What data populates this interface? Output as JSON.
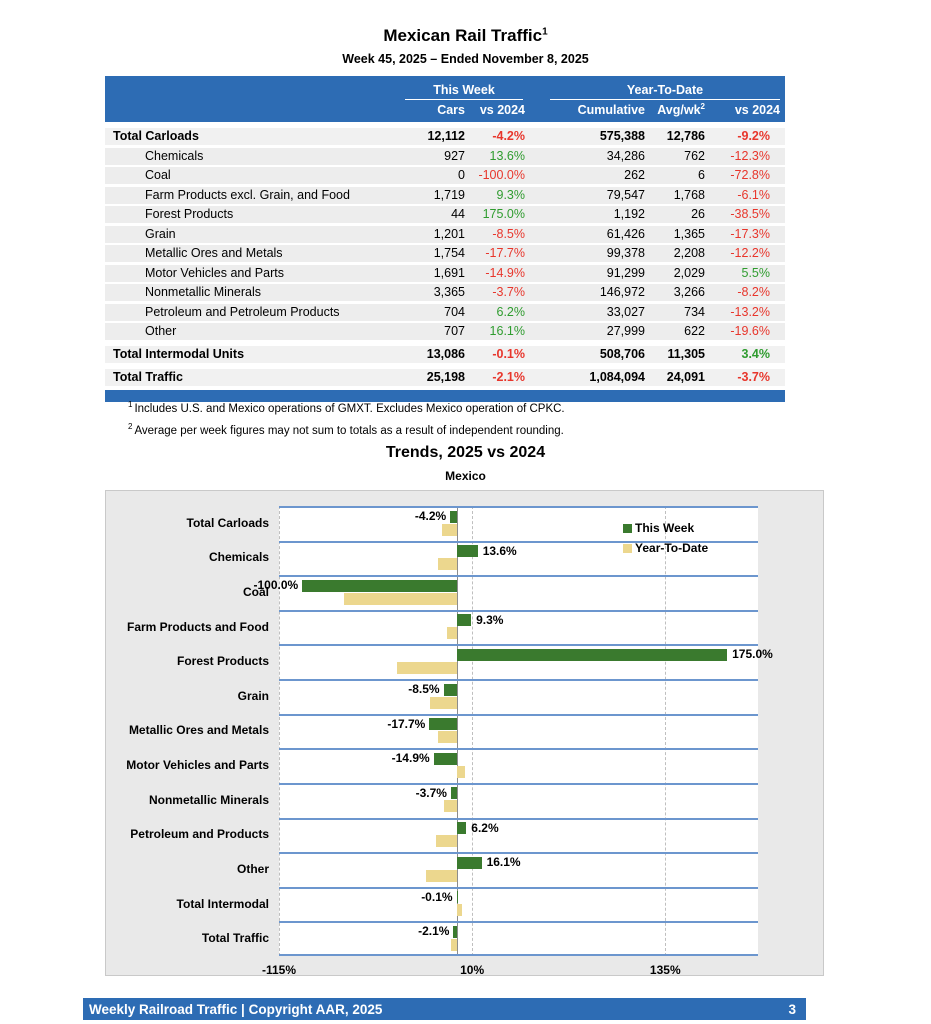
{
  "page": {
    "title": "Mexican Rail Traffic",
    "title_superscript": "1",
    "subtitle": "Week 45, 2025 – Ended November 8, 2025"
  },
  "table": {
    "group_headers": {
      "this_week": "This Week",
      "ytd": "Year-To-Date"
    },
    "columns": {
      "cars": "Cars",
      "wk_vs": "vs 2024",
      "cumulative": "Cumulative",
      "avg": "Avg/wk",
      "avg_superscript": "2",
      "ytd_vs": "vs 2024"
    },
    "rows": [
      {
        "label": "Total Carloads",
        "type": "total",
        "cars": "12,112",
        "wk_vs": "-4.2%",
        "cumulative": "575,388",
        "avg": "12,786",
        "ytd_vs": "-9.2%"
      },
      {
        "label": "Chemicals",
        "type": "sub",
        "cars": "927",
        "wk_vs": "13.6%",
        "cumulative": "34,286",
        "avg": "762",
        "ytd_vs": "-12.3%"
      },
      {
        "label": "Coal",
        "type": "sub",
        "cars": "0",
        "wk_vs": "-100.0%",
        "cumulative": "262",
        "avg": "6",
        "ytd_vs": "-72.8%"
      },
      {
        "label": "Farm Products excl. Grain, and Food",
        "type": "sub",
        "cars": "1,719",
        "wk_vs": "9.3%",
        "cumulative": "79,547",
        "avg": "1,768",
        "ytd_vs": "-6.1%"
      },
      {
        "label": "Forest Products",
        "type": "sub",
        "cars": "44",
        "wk_vs": "175.0%",
        "cumulative": "1,192",
        "avg": "26",
        "ytd_vs": "-38.5%"
      },
      {
        "label": "Grain",
        "type": "sub",
        "cars": "1,201",
        "wk_vs": "-8.5%",
        "cumulative": "61,426",
        "avg": "1,365",
        "ytd_vs": "-17.3%"
      },
      {
        "label": "Metallic Ores and Metals",
        "type": "sub",
        "cars": "1,754",
        "wk_vs": "-17.7%",
        "cumulative": "99,378",
        "avg": "2,208",
        "ytd_vs": "-12.2%"
      },
      {
        "label": "Motor Vehicles and Parts",
        "type": "sub",
        "cars": "1,691",
        "wk_vs": "-14.9%",
        "cumulative": "91,299",
        "avg": "2,029",
        "ytd_vs": "5.5%"
      },
      {
        "label": "Nonmetallic Minerals",
        "type": "sub",
        "cars": "3,365",
        "wk_vs": "-3.7%",
        "cumulative": "146,972",
        "avg": "3,266",
        "ytd_vs": "-8.2%"
      },
      {
        "label": "Petroleum and Petroleum Products",
        "type": "sub",
        "cars": "704",
        "wk_vs": "6.2%",
        "cumulative": "33,027",
        "avg": "734",
        "ytd_vs": "-13.2%"
      },
      {
        "label": "Other",
        "type": "sub",
        "cars": "707",
        "wk_vs": "16.1%",
        "cumulative": "27,999",
        "avg": "622",
        "ytd_vs": "-19.6%"
      },
      {
        "label": "Total Intermodal Units",
        "type": "total",
        "cars": "13,086",
        "wk_vs": "-0.1%",
        "cumulative": "508,706",
        "avg": "11,305",
        "ytd_vs": "3.4%"
      },
      {
        "label": "Total Traffic",
        "type": "total",
        "cars": "25,198",
        "wk_vs": "-2.1%",
        "cumulative": "1,084,094",
        "avg": "24,091",
        "ytd_vs": "-3.7%"
      }
    ]
  },
  "footnotes": [
    {
      "sup": "1",
      "text": "Includes U.S. and Mexico operations of GMXT. Excludes Mexico operation of CPKC."
    },
    {
      "sup": "2",
      "text": "Average per week figures may not sum to totals as a result of independent rounding."
    }
  ],
  "chart_data": {
    "type": "bar",
    "orientation": "horizontal",
    "title": "Trends, 2025 vs 2024",
    "subtitle": "Mexico",
    "categories": [
      "Total Carloads",
      "Chemicals",
      "Coal",
      "Farm Products and Food",
      "Forest Products",
      "Grain",
      "Metallic Ores and Metals",
      "Motor Vehicles and Parts",
      "Nonmetallic Minerals",
      "Petroleum and Products",
      "Other",
      "Total Intermodal",
      "Total Traffic"
    ],
    "series": [
      {
        "name": "This Week",
        "color": "#3A7A2E",
        "values": [
          -4.2,
          13.6,
          -100.0,
          9.3,
          175.0,
          -8.5,
          -17.7,
          -14.9,
          -3.7,
          6.2,
          16.1,
          -0.1,
          -2.1
        ]
      },
      {
        "name": "Year-To-Date",
        "color": "#ECD78E",
        "values": [
          -9.2,
          -12.3,
          -72.8,
          -6.1,
          -38.5,
          -17.3,
          -12.2,
          5.5,
          -8.2,
          -13.2,
          -19.6,
          3.4,
          -3.7
        ]
      }
    ],
    "bar_labels": [
      "-4.2%",
      "13.6%",
      "-100.0%",
      "9.3%",
      "175.0%",
      "-8.5%",
      "-17.7%",
      "-14.9%",
      "-3.7%",
      "6.2%",
      "16.1%",
      "-0.1%",
      "-2.1%"
    ],
    "x_ticks": [
      {
        "value": -115,
        "label": "-115%"
      },
      {
        "value": 10,
        "label": "10%"
      },
      {
        "value": 135,
        "label": "135%"
      }
    ],
    "xlim": [
      -115,
      195
    ],
    "legend_position": "inside-top-right",
    "grid": "dashed-vertical"
  },
  "footer": {
    "text": "Weekly Railroad Traffic | Copyright AAR, 2025",
    "page_number": "3"
  },
  "colors": {
    "header_blue": "#2D6CB4",
    "negative_red": "#E8362C",
    "positive_green": "#2F9C2F",
    "band_line_blue": "#6C96CE",
    "row_gray": "#EDEDED",
    "bar_green": "#3A7A2E",
    "bar_tan": "#ECD78E"
  }
}
